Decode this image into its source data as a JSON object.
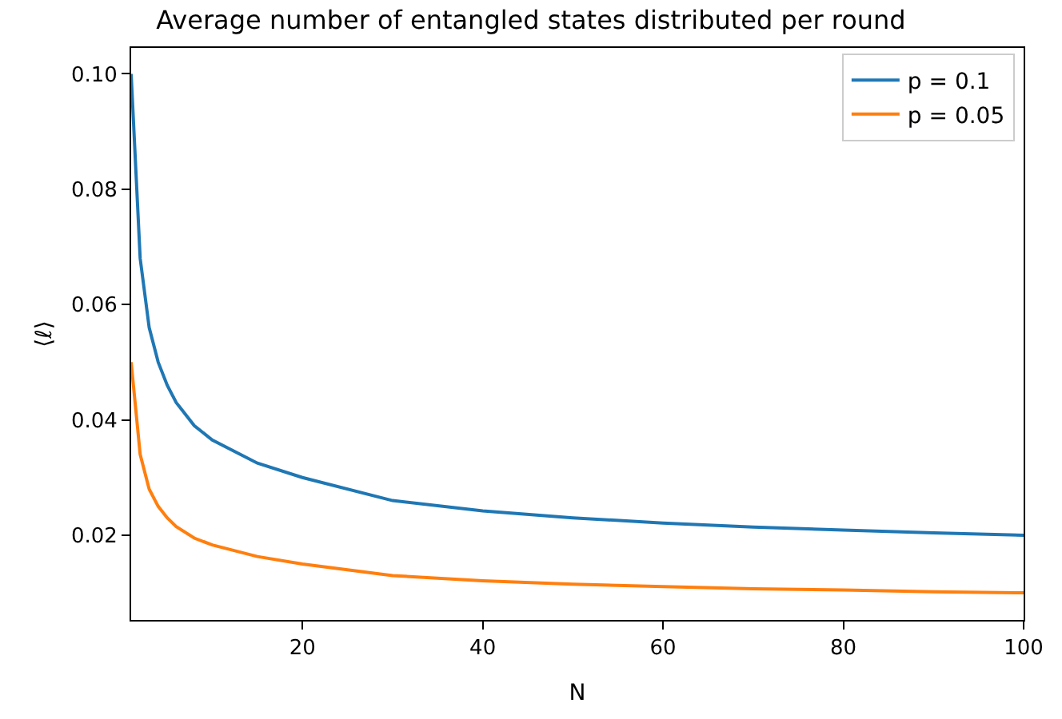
{
  "chart_data": {
    "type": "line",
    "title": "Average number of entangled states distributed per round",
    "xlabel": "N",
    "ylabel": "⟨ℓ⟩",
    "x": [
      1,
      2,
      3,
      4,
      5,
      6,
      8,
      10,
      15,
      20,
      30,
      40,
      50,
      60,
      70,
      80,
      90,
      100
    ],
    "series": [
      {
        "name": "p = 0.1",
        "color": "#1f77b4",
        "values": [
          0.1,
          0.068,
          0.056,
          0.05,
          0.046,
          0.043,
          0.039,
          0.0365,
          0.0325,
          0.03,
          0.026,
          0.0242,
          0.023,
          0.0221,
          0.0214,
          0.0209,
          0.0204,
          0.02
        ]
      },
      {
        "name": "p = 0.05",
        "color": "#ff7f0e",
        "values": [
          0.05,
          0.034,
          0.028,
          0.025,
          0.023,
          0.0215,
          0.0195,
          0.0183,
          0.0163,
          0.015,
          0.013,
          0.0121,
          0.0115,
          0.0111,
          0.0107,
          0.0105,
          0.0102,
          0.01
        ]
      }
    ],
    "xlim": [
      1,
      100
    ],
    "ylim": [
      0.0053,
      0.1045
    ],
    "xticks": [
      20,
      40,
      60,
      80,
      100
    ],
    "yticks": [
      {
        "value": 0.02,
        "label": "0.02"
      },
      {
        "value": 0.04,
        "label": "0.04"
      },
      {
        "value": 0.06,
        "label": "0.06"
      },
      {
        "value": 0.08,
        "label": "0.08"
      },
      {
        "value": 0.1,
        "label": "0.10"
      }
    ],
    "legend": "top right",
    "marker": "none",
    "line_style": "solid"
  }
}
